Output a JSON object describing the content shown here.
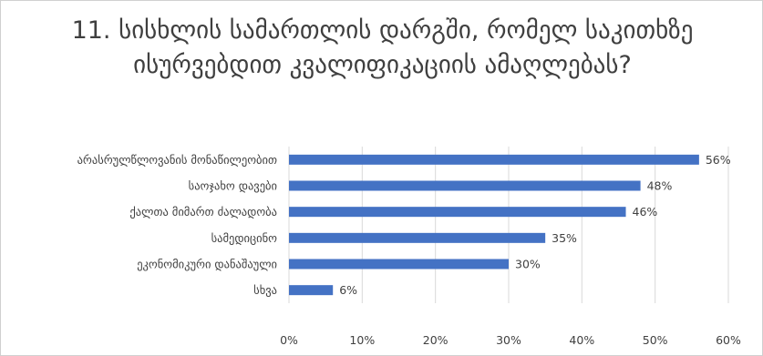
{
  "chart_data": {
    "type": "bar",
    "orientation": "horizontal",
    "title": "11. სისხლის სამართლის დარგში, რომელ საკითხზე ისურვებდით კვალიფიკაციის ამაღლებას?",
    "categories": [
      "არასრულწლოვანის მონაწილეობით",
      "საოჯახო დავები",
      "ქალთა მიმართ ძალადობა",
      "სამედიცინო",
      "ეკონომიკური დანაშაული",
      "სხვა"
    ],
    "values": [
      56,
      48,
      46,
      35,
      30,
      6
    ],
    "value_labels": [
      "56%",
      "48%",
      "46%",
      "35%",
      "30%",
      "6%"
    ],
    "xlim": [
      0,
      60
    ],
    "x_ticks": [
      "0%",
      "10%",
      "20%",
      "30%",
      "40%",
      "50%",
      "60%"
    ],
    "grid": true,
    "bar_color": "#4472c4"
  }
}
